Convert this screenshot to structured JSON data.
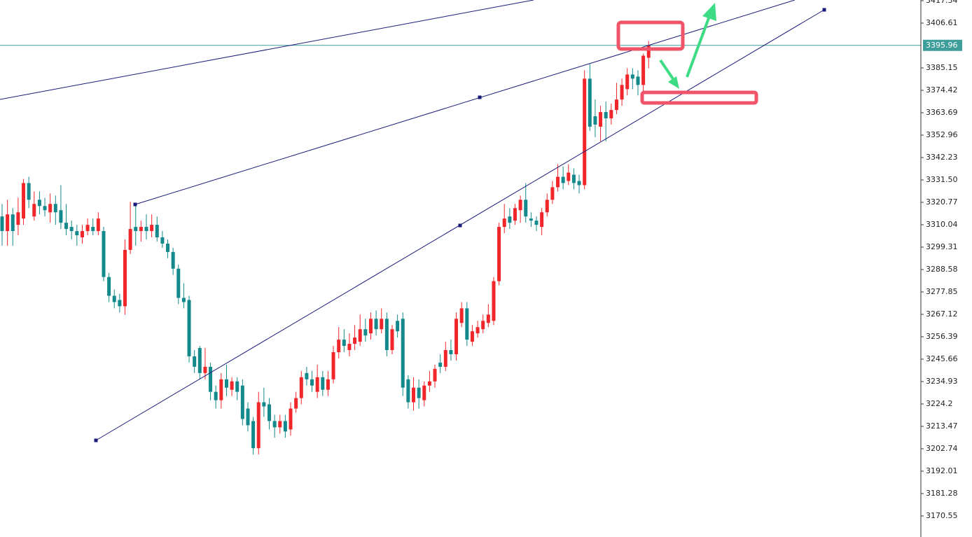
{
  "chart_data": {
    "type": "candlestick",
    "categories": [
      null,
      null,
      null,
      null,
      null,
      null,
      null,
      null,
      null,
      null,
      null,
      null,
      null,
      null,
      null,
      null,
      null,
      null,
      null,
      null,
      null,
      null,
      null,
      null,
      null,
      null,
      null,
      null,
      null,
      null,
      null,
      null,
      null,
      null,
      null,
      null,
      null,
      null,
      null,
      null,
      null,
      null,
      null,
      null,
      null,
      null,
      null,
      null,
      null,
      null,
      null,
      null,
      null,
      null,
      null,
      null,
      null,
      null,
      null,
      null,
      null,
      null,
      null,
      null,
      null,
      null,
      null,
      null,
      null,
      null,
      null,
      null,
      null,
      null,
      null,
      null,
      null,
      null,
      null,
      null,
      null,
      null,
      null,
      null,
      null,
      null,
      null,
      null,
      null,
      null,
      null,
      null,
      null,
      null,
      null,
      null,
      null,
      null,
      null,
      null,
      null,
      null,
      null,
      null,
      null,
      null,
      null,
      null,
      null,
      null,
      null,
      null,
      null,
      null,
      null,
      null,
      null,
      null,
      null,
      null,
      null,
      null
    ],
    "open": [
      3314,
      3307,
      3315,
      3310,
      3313,
      3330,
      3314,
      3322,
      3319,
      3316,
      3320,
      3317,
      3311,
      3309,
      3307,
      3304,
      3307,
      3309,
      3307,
      3307,
      3285,
      3276,
      3274,
      3271,
      3298,
      3309,
      3307,
      3309,
      3307,
      3310,
      3304,
      3301,
      3297,
      3289,
      3275,
      3274,
      3247,
      3251,
      3239,
      3242,
      3230,
      3226,
      3236,
      3231,
      3235,
      3233,
      3222,
      3216,
      3203,
      3225,
      3224,
      3216,
      3213,
      3216,
      3212,
      3222,
      3227,
      3239,
      3236,
      3230,
      3237,
      3231,
      3236,
      3249,
      3255,
      3250,
      3253,
      3254,
      3260,
      3258,
      3265,
      3260,
      3265,
      3250,
      3264,
      3265,
      3236,
      3225,
      3232,
      3226,
      3233,
      3235,
      3244,
      3242,
      3250,
      3248,
      3263,
      3270,
      3254,
      3258,
      3260,
      3263,
      3264,
      3283,
      3309,
      3314,
      3312,
      3317,
      3322,
      3313,
      3312,
      3309,
      3316,
      3322,
      3328,
      3333,
      3331,
      3334,
      3331,
      3329,
      3380,
      3362,
      3357,
      3364,
      3361,
      3365,
      3370,
      3375,
      3382,
      3381,
      3377,
      3390
    ],
    "high": [
      3320,
      3322,
      3318,
      3323,
      3332,
      3333,
      3326,
      3326,
      3323,
      3325,
      3324,
      3329,
      3320,
      3312,
      3310,
      3310,
      3313,
      3313,
      3316,
      3309,
      3287,
      3279,
      3277,
      3303,
      3321,
      3320,
      3312,
      3315,
      3315,
      3314,
      3307,
      3303,
      3299,
      3291,
      3282,
      3276,
      3250,
      3252,
      3251,
      3244,
      3233,
      3239,
      3243,
      3237,
      3237,
      3236,
      3225,
      3218,
      3230,
      3232,
      3227,
      3219,
      3219,
      3219,
      3225,
      3230,
      3240,
      3242,
      3240,
      3243,
      3240,
      3240,
      3252,
      3261,
      3260,
      3258,
      3262,
      3267,
      3265,
      3268,
      3269,
      3270,
      3268,
      3262,
      3267,
      3268,
      3238,
      3237,
      3236,
      3235,
      3240,
      3243,
      3248,
      3254,
      3255,
      3268,
      3273,
      3273,
      3262,
      3264,
      3267,
      3272,
      3285,
      3311,
      3320,
      3318,
      3320,
      3324,
      3330,
      3316,
      3314,
      3318,
      3325,
      3331,
      3339,
      3338,
      3339,
      3337,
      3334,
      3384,
      3387,
      3370,
      3367,
      3369,
      3368,
      3378,
      3380,
      3385,
      3385,
      3384,
      3392,
      3398
    ],
    "low": [
      3300,
      3300,
      3300,
      3305,
      3310,
      3318,
      3312,
      3315,
      3314,
      3311,
      3310,
      3308,
      3305,
      3303,
      3300,
      3301,
      3305,
      3305,
      3305,
      3283,
      3273,
      3270,
      3268,
      3267,
      3296,
      3300,
      3302,
      3303,
      3304,
      3302,
      3299,
      3294,
      3286,
      3272,
      3270,
      3244,
      3239,
      3236,
      3236,
      3226,
      3222,
      3222,
      3228,
      3228,
      3226,
      3214,
      3211,
      3200,
      3200,
      3218,
      3212,
      3208,
      3210,
      3208,
      3209,
      3220,
      3224,
      3233,
      3230,
      3227,
      3228,
      3228,
      3234,
      3246,
      3249,
      3247,
      3250,
      3252,
      3254,
      3255,
      3257,
      3258,
      3247,
      3248,
      3256,
      3228,
      3222,
      3221,
      3222,
      3223,
      3230,
      3232,
      3239,
      3240,
      3245,
      3245,
      3261,
      3252,
      3252,
      3256,
      3258,
      3261,
      3262,
      3281,
      3306,
      3308,
      3310,
      3311,
      3311,
      3309,
      3307,
      3305,
      3314,
      3320,
      3326,
      3327,
      3329,
      3327,
      3325,
      3327,
      3355,
      3352,
      3350,
      3350,
      3358,
      3363,
      3367,
      3372,
      3375,
      3372,
      3374,
      3385
    ],
    "close": [
      3307,
      3315,
      3307,
      3316,
      3330,
      3322,
      3320,
      3319,
      3317,
      3320,
      3316,
      3311,
      3308,
      3307,
      3305,
      3307,
      3310,
      3307,
      3313,
      3285,
      3276,
      3273,
      3271,
      3298,
      3308,
      3307,
      3309,
      3307,
      3310,
      3304,
      3301,
      3297,
      3289,
      3275,
      3273,
      3247,
      3242,
      3239,
      3242,
      3230,
      3226,
      3236,
      3232,
      3235,
      3230,
      3217,
      3214,
      3203,
      3225,
      3223,
      3216,
      3213,
      3216,
      3211,
      3222,
      3227,
      3237,
      3236,
      3233,
      3237,
      3231,
      3236,
      3249,
      3255,
      3252,
      3253,
      3256,
      3260,
      3257,
      3265,
      3260,
      3265,
      3250,
      3260,
      3259,
      3232,
      3225,
      3232,
      3227,
      3233,
      3235,
      3241,
      3242,
      3250,
      3248,
      3265,
      3270,
      3255,
      3259,
      3261,
      3264,
      3267,
      3283,
      3309,
      3313,
      3311,
      3318,
      3322,
      3314,
      3312,
      3310,
      3316,
      3322,
      3328,
      3333,
      3330,
      3335,
      3330,
      3329,
      3380,
      3357,
      3358,
      3364,
      3361,
      3365,
      3370,
      3377,
      3382,
      3380,
      3377,
      3391,
      3396
    ],
    "up_color": "#f0262a",
    "down_color": "#14898c",
    "ylim": [
      3160.47,
      3417.68
    ],
    "yticks": [
      3417.34,
      3406.61,
      3385.15,
      3374.42,
      3363.69,
      3352.96,
      3342.23,
      {
        "value": 3331.5,
        "label": "3331.50"
      },
      3320.77,
      3310.04,
      3299.31,
      3288.58,
      3277.85,
      3267.12,
      3256.39,
      3245.66,
      3234.93,
      3224.2,
      3213.47,
      3202.74,
      3192.01,
      3181.28,
      3170.55
    ],
    "current_price": 3395.96,
    "current_price_color": "#3e9e9a"
  }
}
